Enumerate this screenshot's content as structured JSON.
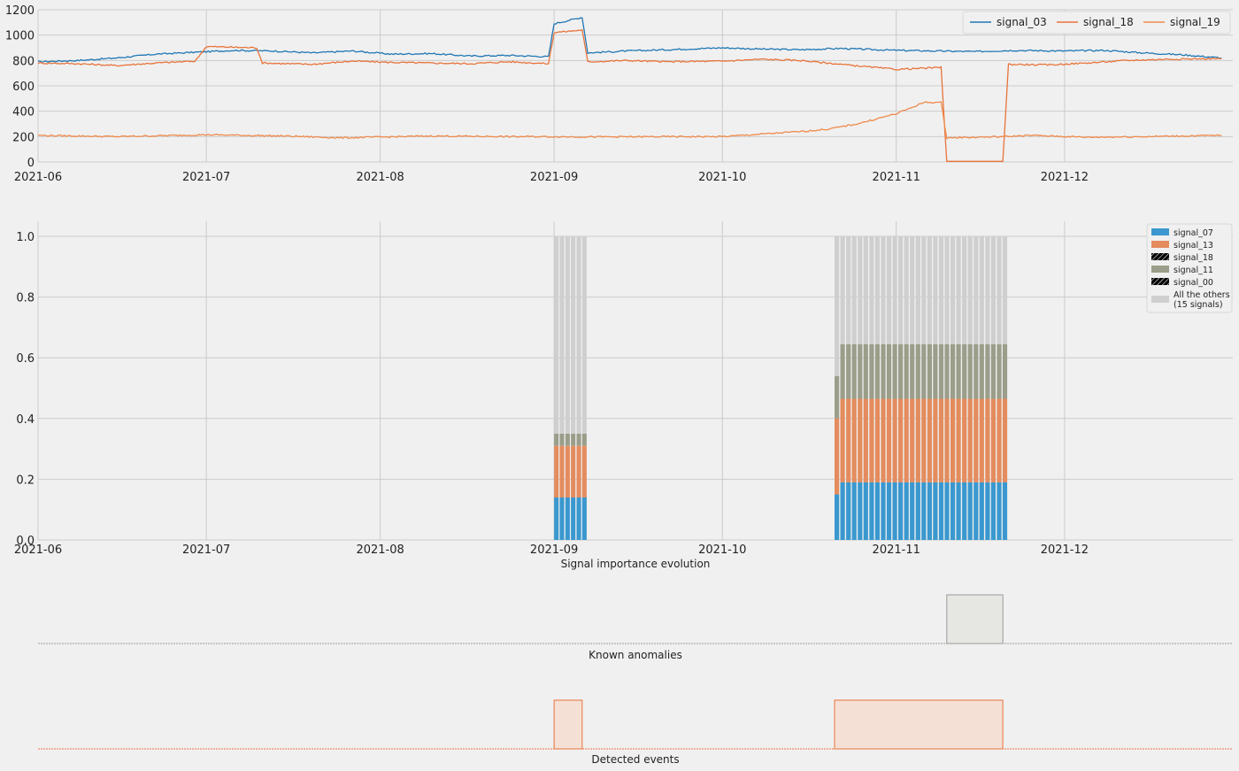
{
  "chart_data": [
    {
      "type": "line",
      "xlim": [
        "2021-06-01",
        "2021-12-31"
      ],
      "x_ticks": [
        "2021-06",
        "2021-07",
        "2021-08",
        "2021-09",
        "2021-10",
        "2021-11",
        "2021-12"
      ],
      "ylim": [
        0,
        1200
      ],
      "y_ticks": [
        "0",
        "200",
        "400",
        "600",
        "800",
        "1000",
        "1200"
      ],
      "grid": true,
      "legend_position": "top-right",
      "legend_layout": "single-row",
      "series": [
        {
          "name": "signal_03",
          "color": "#1f77b4",
          "points": [
            [
              "2021-06-01",
              790
            ],
            [
              "2021-06-08",
              800
            ],
            [
              "2021-06-15",
              820
            ],
            [
              "2021-06-22",
              850
            ],
            [
              "2021-06-29",
              865
            ],
            [
              "2021-07-06",
              880
            ],
            [
              "2021-07-13",
              875
            ],
            [
              "2021-07-20",
              860
            ],
            [
              "2021-07-27",
              875
            ],
            [
              "2021-08-03",
              850
            ],
            [
              "2021-08-10",
              855
            ],
            [
              "2021-08-17",
              835
            ],
            [
              "2021-08-24",
              840
            ],
            [
              "2021-08-31",
              830
            ],
            [
              "2021-09-01",
              1090
            ],
            [
              "2021-09-06",
              1140
            ],
            [
              "2021-09-07",
              860
            ],
            [
              "2021-09-14",
              875
            ],
            [
              "2021-09-21",
              885
            ],
            [
              "2021-10-01",
              900
            ],
            [
              "2021-10-08",
              890
            ],
            [
              "2021-10-15",
              885
            ],
            [
              "2021-10-22",
              895
            ],
            [
              "2021-11-01",
              880
            ],
            [
              "2021-11-08",
              875
            ],
            [
              "2021-11-15",
              870
            ],
            [
              "2021-11-22",
              880
            ],
            [
              "2021-12-01",
              875
            ],
            [
              "2021-12-08",
              880
            ],
            [
              "2021-12-15",
              860
            ],
            [
              "2021-12-22",
              845
            ],
            [
              "2021-12-29",
              820
            ]
          ]
        },
        {
          "name": "signal_18",
          "color": "#e8743b",
          "points": [
            [
              "2021-06-01",
              780
            ],
            [
              "2021-06-08",
              775
            ],
            [
              "2021-06-15",
              760
            ],
            [
              "2021-06-22",
              780
            ],
            [
              "2021-06-29",
              795
            ],
            [
              "2021-07-01",
              910
            ],
            [
              "2021-07-10",
              900
            ],
            [
              "2021-07-11",
              780
            ],
            [
              "2021-07-20",
              770
            ],
            [
              "2021-07-27",
              795
            ],
            [
              "2021-08-03",
              785
            ],
            [
              "2021-08-10",
              780
            ],
            [
              "2021-08-17",
              775
            ],
            [
              "2021-08-24",
              790
            ],
            [
              "2021-08-31",
              775
            ],
            [
              "2021-09-01",
              1020
            ],
            [
              "2021-09-06",
              1040
            ],
            [
              "2021-09-07",
              790
            ],
            [
              "2021-09-14",
              800
            ],
            [
              "2021-09-21",
              790
            ],
            [
              "2021-10-01",
              795
            ],
            [
              "2021-10-08",
              810
            ],
            [
              "2021-10-15",
              800
            ],
            [
              "2021-10-22",
              770
            ],
            [
              "2021-11-01",
              730
            ],
            [
              "2021-11-09",
              745
            ],
            [
              "2021-11-10",
              5
            ],
            [
              "2021-11-20",
              5
            ],
            [
              "2021-11-21",
              770
            ],
            [
              "2021-11-28",
              765
            ],
            [
              "2021-12-05",
              780
            ],
            [
              "2021-12-12",
              800
            ],
            [
              "2021-12-19",
              810
            ],
            [
              "2021-12-29",
              815
            ]
          ]
        },
        {
          "name": "signal_19",
          "color": "#f08a4b",
          "points": [
            [
              "2021-06-01",
              210
            ],
            [
              "2021-06-15",
              200
            ],
            [
              "2021-07-01",
              215
            ],
            [
              "2021-07-15",
              205
            ],
            [
              "2021-07-25",
              190
            ],
            [
              "2021-08-10",
              205
            ],
            [
              "2021-08-25",
              200
            ],
            [
              "2021-09-10",
              198
            ],
            [
              "2021-09-25",
              200
            ],
            [
              "2021-10-01",
              200
            ],
            [
              "2021-10-15",
              240
            ],
            [
              "2021-10-20",
              260
            ],
            [
              "2021-10-25",
              300
            ],
            [
              "2021-11-01",
              380
            ],
            [
              "2021-11-06",
              470
            ],
            [
              "2021-11-09",
              470
            ],
            [
              "2021-11-10",
              190
            ],
            [
              "2021-11-20",
              200
            ],
            [
              "2021-11-25",
              210
            ],
            [
              "2021-12-05",
              195
            ],
            [
              "2021-12-15",
              200
            ],
            [
              "2021-12-29",
              210
            ]
          ]
        }
      ]
    },
    {
      "type": "bar",
      "stacked": true,
      "xlim": [
        "2021-06-01",
        "2021-12-31"
      ],
      "x_ticks": [
        "2021-06",
        "2021-07",
        "2021-08",
        "2021-09",
        "2021-10",
        "2021-11",
        "2021-12"
      ],
      "ylim": [
        0,
        1.0
      ],
      "y_ticks": [
        "0.0",
        "0.2",
        "0.4",
        "0.6",
        "0.8",
        "1.0"
      ],
      "grid": true,
      "xlabel": "Signal importance evolution",
      "legend_position": "top-right",
      "series": [
        {
          "name": "signal_07",
          "color": "#3a98cf"
        },
        {
          "name": "signal_13",
          "color": "#e48c5e"
        },
        {
          "name": "signal_18",
          "color": "#ec9a70",
          "hatched": true
        },
        {
          "name": "signal_11",
          "color": "#9a9e8a"
        },
        {
          "name": "signal_00",
          "color": "#a0a48e",
          "hatched": true
        },
        {
          "name": "All the others",
          "name_extra": "(15 signals)",
          "color": "#cfcfcf"
        }
      ],
      "bar_groups": [
        {
          "start": "2021-09-01",
          "end": "2021-09-06",
          "count": 6,
          "values": {
            "signal_07": 0.14,
            "signal_13": 0.17,
            "signal_18": 0.0,
            "signal_11": 0.04,
            "signal_00": 0.0,
            "All the others": 0.65
          }
        },
        {
          "start": "2021-10-21",
          "end": "2021-11-20",
          "count": 30,
          "first_values": {
            "signal_07": 0.15,
            "signal_13": 0.25,
            "signal_18": 0.0,
            "signal_11": 0.14,
            "signal_00": 0.0,
            "All the others": 0.46
          },
          "values": {
            "signal_07": 0.19,
            "signal_13": 0.275,
            "signal_18": 0.0,
            "signal_11": 0.18,
            "signal_00": 0.0,
            "All the others": 0.355
          }
        }
      ]
    },
    {
      "type": "area",
      "xlabel": "Known anomalies",
      "xlim": [
        "2021-06-01",
        "2021-12-31"
      ],
      "fill_color": "#e6e7e2",
      "edge_color": "#9a9a9a",
      "intervals": [
        [
          "2021-11-10",
          "2021-11-20"
        ]
      ]
    },
    {
      "type": "area",
      "xlabel": "Detected events",
      "xlim": [
        "2021-06-01",
        "2021-12-31"
      ],
      "fill_color": "#f5e0d6",
      "edge_color": "#e8743b",
      "intervals": [
        [
          "2021-09-01",
          "2021-09-06"
        ],
        [
          "2021-10-21",
          "2021-11-20"
        ]
      ]
    }
  ]
}
